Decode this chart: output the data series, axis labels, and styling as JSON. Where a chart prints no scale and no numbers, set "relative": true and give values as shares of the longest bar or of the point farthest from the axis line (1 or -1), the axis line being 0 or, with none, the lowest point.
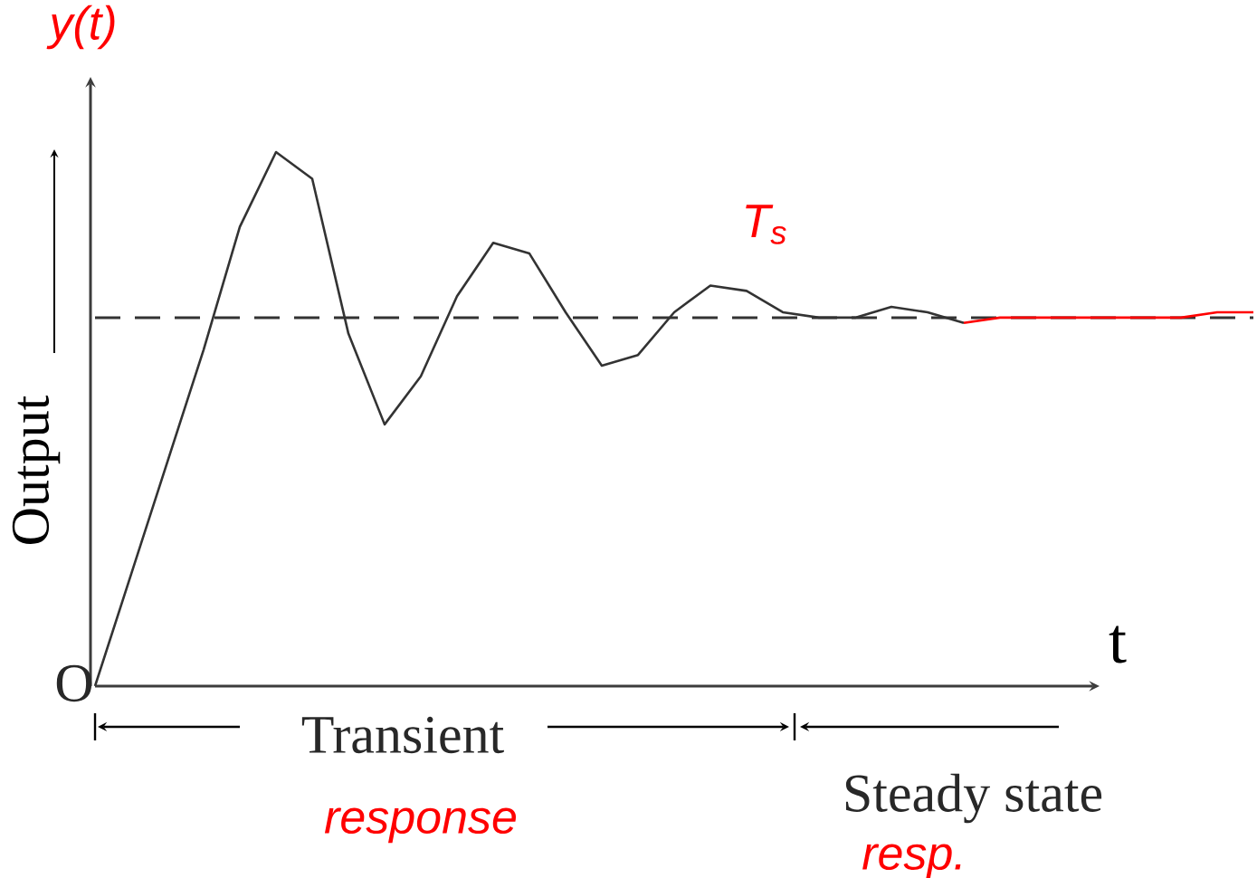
{
  "chart_data": {
    "type": "line",
    "relative": true,
    "ylabel": "Output",
    "xlabel": "t",
    "categories": [
      null,
      null,
      null,
      null,
      null,
      null,
      null,
      null,
      null,
      null,
      null,
      null,
      null,
      null,
      null,
      null,
      null,
      null,
      null,
      null,
      null,
      null,
      null,
      null,
      null,
      null,
      null,
      null,
      null,
      null,
      null,
      null,
      null
    ],
    "series": [
      {
        "color": "#333333",
        "values": [
          0,
          0.21,
          0.42,
          0.63,
          0.86,
          1.0,
          0.95,
          0.66,
          0.49,
          0.58,
          0.73,
          0.83,
          0.81,
          0.7,
          0.6,
          0.62,
          0.7,
          0.75,
          0.74,
          0.7,
          0.69,
          0.69,
          0.71,
          0.7,
          0.68,
          null,
          null,
          null,
          null,
          null,
          null,
          null,
          null
        ]
      },
      {
        "color": "#ff0000",
        "values": [
          null,
          null,
          null,
          null,
          null,
          null,
          null,
          null,
          null,
          null,
          null,
          null,
          null,
          null,
          null,
          null,
          null,
          null,
          null,
          null,
          null,
          null,
          null,
          null,
          0.68,
          0.69,
          0.69,
          0.69,
          0.69,
          0.69,
          0.69,
          0.7,
          0.7
        ]
      }
    ],
    "ref_lines": [
      {
        "axis": "y",
        "value": 0.69,
        "line_style": "dashed",
        "color": "#333333"
      }
    ],
    "annotations": [
      "O",
      "y(t)",
      "T$_{s}$",
      "Transient",
      "response",
      "Steady state",
      "resp."
    ]
  }
}
